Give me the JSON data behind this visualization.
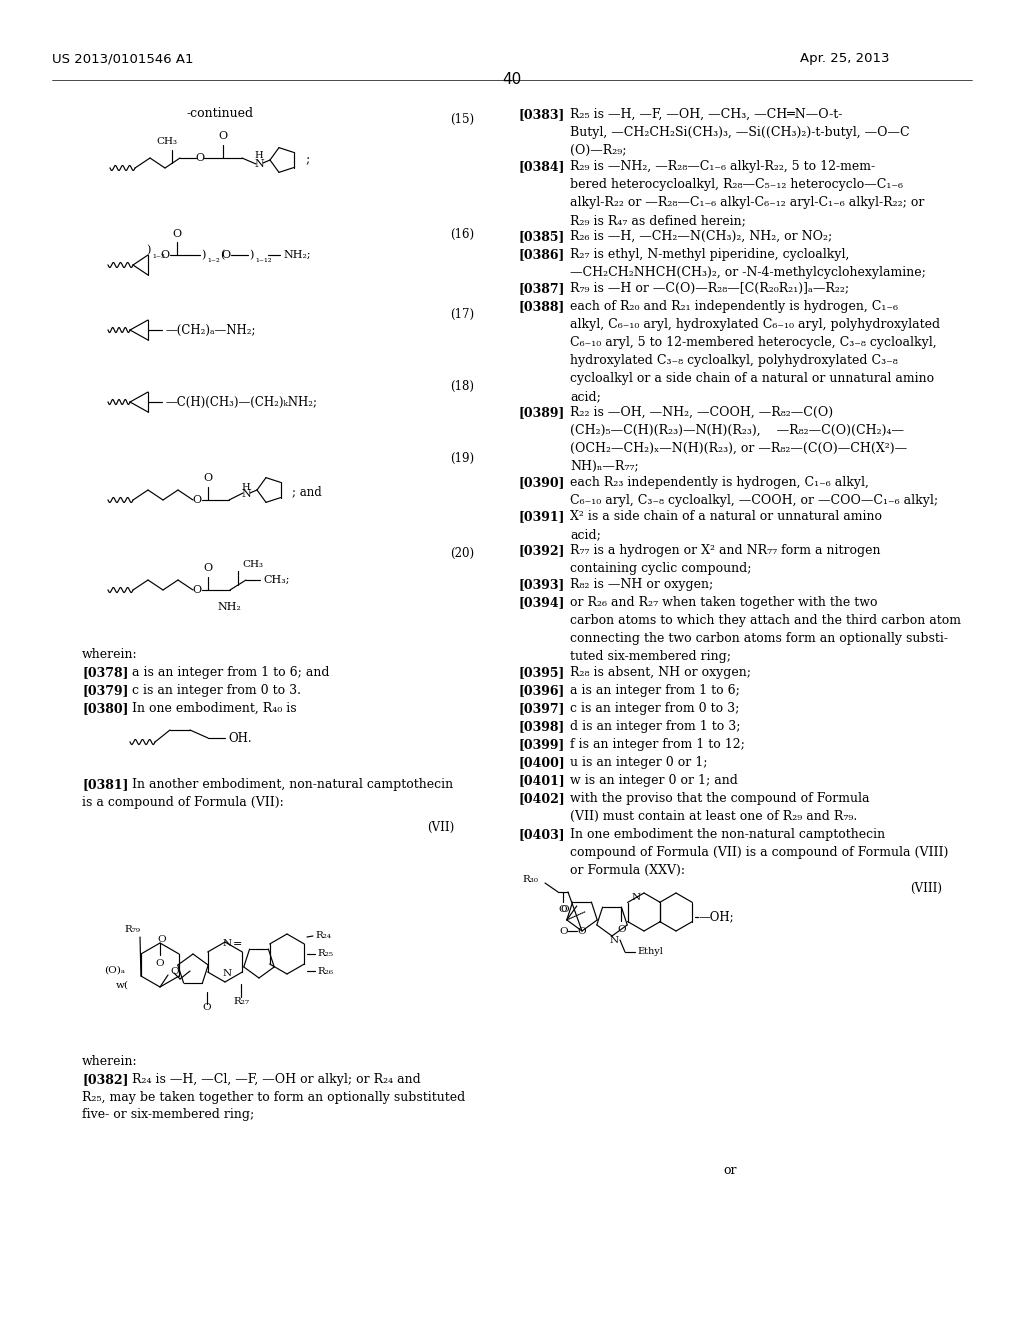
{
  "patent_number": "US 2013/0101546 A1",
  "patent_date": "Apr. 25, 2013",
  "page_number": "40",
  "bg": "#ffffff"
}
